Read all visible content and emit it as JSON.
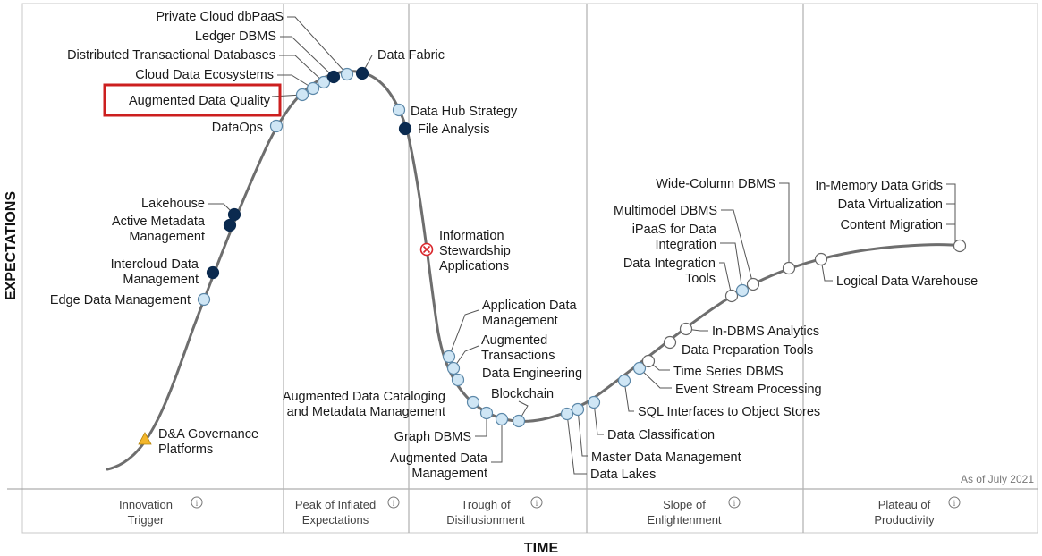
{
  "axes": {
    "y_label": "EXPECTATIONS",
    "x_label": "TIME"
  },
  "as_of": "As of July 2021",
  "info_icon": "info-icon",
  "phases": [
    {
      "id": "innovation-trigger",
      "lines": [
        "Innovation",
        "Trigger"
      ]
    },
    {
      "id": "peak",
      "lines": [
        "Peak of Inflated",
        "Expectations"
      ]
    },
    {
      "id": "trough",
      "lines": [
        "Trough of",
        "Disillusionment"
      ]
    },
    {
      "id": "slope",
      "lines": [
        "Slope of",
        "Enlightenment"
      ]
    },
    {
      "id": "plateau",
      "lines": [
        "Plateau of",
        "Productivity"
      ]
    }
  ],
  "legend_markers": {
    "light": "#cfe6f5",
    "dark": "#0b2a4f",
    "white": "#ffffff",
    "obsolete": "#d9262b",
    "triangle": "#f3b62b"
  },
  "highlight_color": "#cc1f1f",
  "technologies": [
    {
      "name": "d-a-governance",
      "lines": [
        "D&A Governance",
        "Platforms"
      ],
      "marker": "triangle"
    },
    {
      "name": "edge-data-management",
      "lines": [
        "Edge Data Management"
      ],
      "marker": "light"
    },
    {
      "name": "intercloud-data-management",
      "lines": [
        "Intercloud Data",
        "Management"
      ],
      "marker": "dark"
    },
    {
      "name": "active-metadata-management",
      "lines": [
        "Active Metadata",
        "Management"
      ],
      "marker": "dark"
    },
    {
      "name": "lakehouse",
      "lines": [
        "Lakehouse"
      ],
      "marker": "dark"
    },
    {
      "name": "dataops",
      "lines": [
        "DataOps"
      ],
      "marker": "light"
    },
    {
      "name": "augmented-data-quality",
      "lines": [
        "Augmented Data Quality"
      ],
      "marker": "light",
      "highlighted": true
    },
    {
      "name": "cloud-data-ecosystems",
      "lines": [
        "Cloud Data Ecosystems"
      ],
      "marker": "light"
    },
    {
      "name": "distributed-transactional-databases",
      "lines": [
        "Distributed Transactional Databases"
      ],
      "marker": "light"
    },
    {
      "name": "ledger-dbms",
      "lines": [
        "Ledger DBMS"
      ],
      "marker": "dark"
    },
    {
      "name": "private-cloud-dbpaas",
      "lines": [
        "Private Cloud dbPaaS"
      ],
      "marker": "light"
    },
    {
      "name": "data-fabric",
      "lines": [
        "Data Fabric"
      ],
      "marker": "dark"
    },
    {
      "name": "data-hub-strategy",
      "lines": [
        "Data Hub Strategy"
      ],
      "marker": "light"
    },
    {
      "name": "file-analysis",
      "lines": [
        "File Analysis"
      ],
      "marker": "dark"
    },
    {
      "name": "information-stewardship-applications",
      "lines": [
        "Information",
        "Stewardship",
        "Applications"
      ],
      "marker": "obsolete"
    },
    {
      "name": "application-data-management",
      "lines": [
        "Application Data",
        "Management"
      ],
      "marker": "light"
    },
    {
      "name": "augmented-transactions",
      "lines": [
        "Augmented",
        "Transactions"
      ],
      "marker": "light"
    },
    {
      "name": "data-engineering",
      "lines": [
        "Data Engineering"
      ],
      "marker": "light"
    },
    {
      "name": "augmented-data-cataloging",
      "lines": [
        "Augmented Data Cataloging",
        "and Metadata Management"
      ],
      "marker": "light"
    },
    {
      "name": "graph-dbms",
      "lines": [
        "Graph DBMS"
      ],
      "marker": "light"
    },
    {
      "name": "augmented-data-management",
      "lines": [
        "Augmented Data",
        "Management"
      ],
      "marker": "light"
    },
    {
      "name": "blockchain",
      "lines": [
        "Blockchain"
      ],
      "marker": "light"
    },
    {
      "name": "data-lakes",
      "lines": [
        "Data Lakes"
      ],
      "marker": "light"
    },
    {
      "name": "master-data-management",
      "lines": [
        "Master Data Management"
      ],
      "marker": "light"
    },
    {
      "name": "data-classification",
      "lines": [
        "Data Classification"
      ],
      "marker": "light"
    },
    {
      "name": "sql-interfaces-to-object-stores",
      "lines": [
        "SQL Interfaces to Object Stores"
      ],
      "marker": "light"
    },
    {
      "name": "event-stream-processing",
      "lines": [
        "Event Stream Processing"
      ],
      "marker": "light"
    },
    {
      "name": "time-series-dbms",
      "lines": [
        "Time Series DBMS"
      ],
      "marker": "white"
    },
    {
      "name": "data-preparation-tools",
      "lines": [
        "Data Preparation Tools"
      ],
      "marker": "white"
    },
    {
      "name": "in-dbms-analytics",
      "lines": [
        "In-DBMS Analytics"
      ],
      "marker": "white"
    },
    {
      "name": "data-integration-tools",
      "lines": [
        "Data Integration",
        "Tools"
      ],
      "marker": "white"
    },
    {
      "name": "ipaas-for-data-integration",
      "lines": [
        "iPaaS for Data",
        "Integration"
      ],
      "marker": "light"
    },
    {
      "name": "multimodel-dbms",
      "lines": [
        "Multimodel DBMS"
      ],
      "marker": "white"
    },
    {
      "name": "wide-column-dbms",
      "lines": [
        "Wide-Column DBMS"
      ],
      "marker": "white"
    },
    {
      "name": "logical-data-warehouse",
      "lines": [
        "Logical Data Warehouse"
      ],
      "marker": "white"
    },
    {
      "name": "in-memory-data-grids",
      "lines": [
        "In-Memory Data Grids"
      ],
      "marker": "white"
    },
    {
      "name": "data-virtualization",
      "lines": [
        "Data Virtualization"
      ],
      "marker": "white"
    },
    {
      "name": "content-migration",
      "lines": [
        "Content Migration"
      ],
      "marker": "white"
    }
  ]
}
